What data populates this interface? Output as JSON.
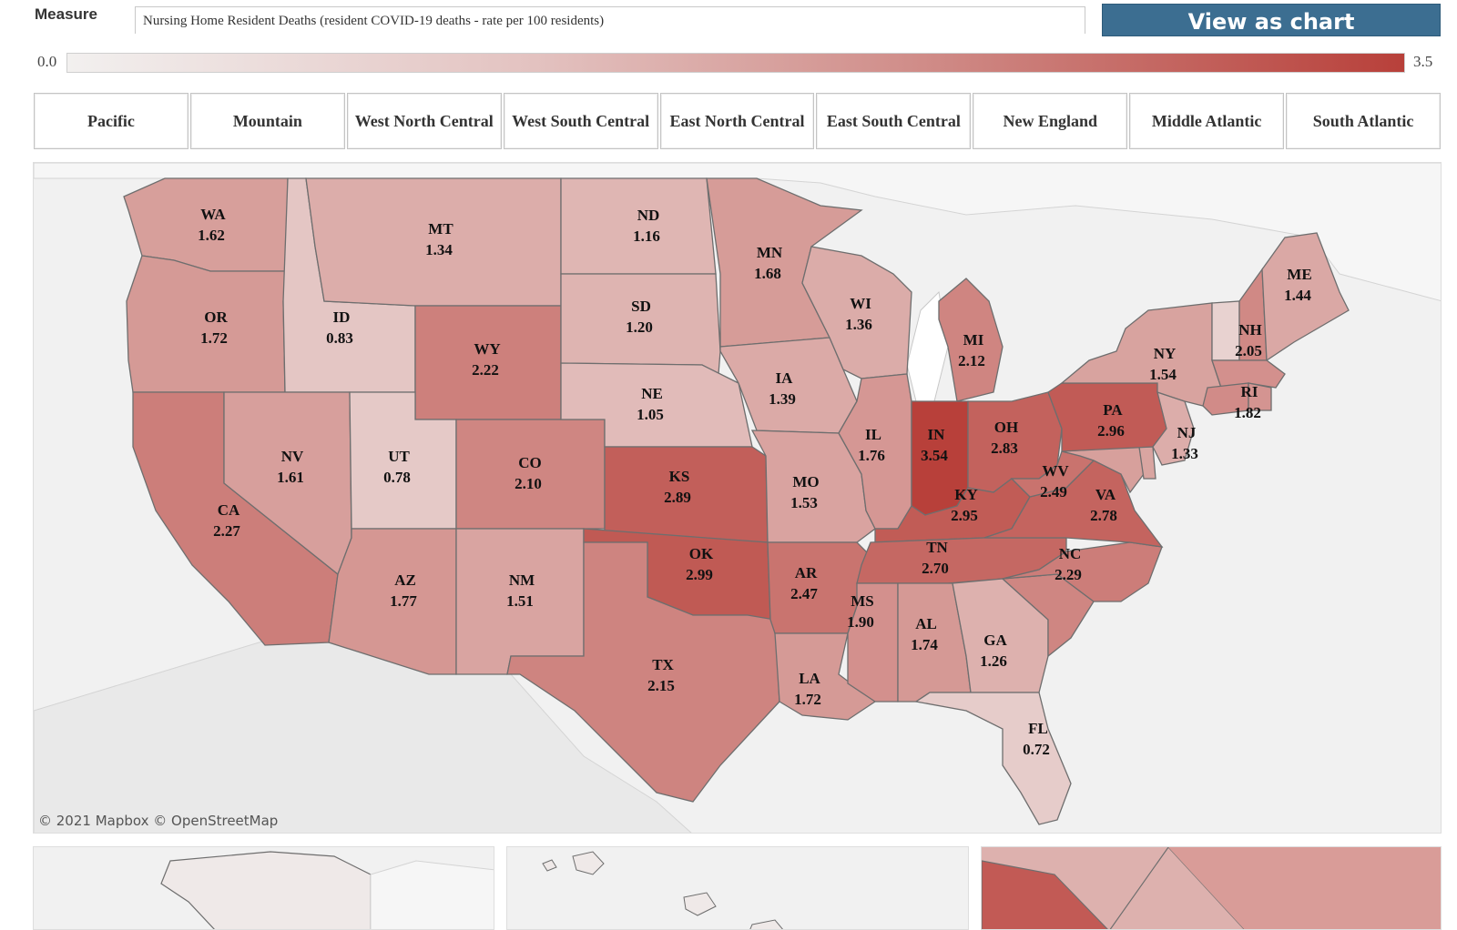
{
  "header": {
    "measure_label": "Measure",
    "measure_value": "Nursing Home Resident Deaths (resident COVID-19 deaths - rate per 100 residents)",
    "view_button": "View as chart"
  },
  "legend": {
    "min_label": "0.0",
    "max_label": "3.5",
    "min": 0.0,
    "max": 3.5,
    "color_low": "#f2f0ef",
    "color_high": "#b8403a"
  },
  "tabs": [
    "Pacific",
    "Mountain",
    "West North Central",
    "West South Central",
    "East North Central",
    "East South Central",
    "New England",
    "Middle Atlantic",
    "South Atlantic"
  ],
  "attribution": "© 2021 Mapbox  © OpenStreetMap",
  "states": [
    {
      "code": "WA",
      "value": "1.62"
    },
    {
      "code": "OR",
      "value": "1.72"
    },
    {
      "code": "CA",
      "value": "2.27"
    },
    {
      "code": "ID",
      "value": "0.83"
    },
    {
      "code": "NV",
      "value": "1.61"
    },
    {
      "code": "MT",
      "value": "1.34"
    },
    {
      "code": "WY",
      "value": "2.22"
    },
    {
      "code": "UT",
      "value": "0.78"
    },
    {
      "code": "CO",
      "value": "2.10"
    },
    {
      "code": "AZ",
      "value": "1.77"
    },
    {
      "code": "NM",
      "value": "1.51"
    },
    {
      "code": "ND",
      "value": "1.16"
    },
    {
      "code": "SD",
      "value": "1.20"
    },
    {
      "code": "NE",
      "value": "1.05"
    },
    {
      "code": "KS",
      "value": "2.89"
    },
    {
      "code": "OK",
      "value": "2.99"
    },
    {
      "code": "TX",
      "value": "2.15"
    },
    {
      "code": "MN",
      "value": "1.68"
    },
    {
      "code": "IA",
      "value": "1.39"
    },
    {
      "code": "MO",
      "value": "1.53"
    },
    {
      "code": "AR",
      "value": "2.47"
    },
    {
      "code": "LA",
      "value": "1.72"
    },
    {
      "code": "WI",
      "value": "1.36"
    },
    {
      "code": "IL",
      "value": "1.76"
    },
    {
      "code": "MI",
      "value": "2.12"
    },
    {
      "code": "IN",
      "value": "3.54"
    },
    {
      "code": "OH",
      "value": "2.83"
    },
    {
      "code": "KY",
      "value": "2.95"
    },
    {
      "code": "TN",
      "value": "2.70"
    },
    {
      "code": "MS",
      "value": "1.90"
    },
    {
      "code": "AL",
      "value": "1.74"
    },
    {
      "code": "GA",
      "value": "1.26"
    },
    {
      "code": "FL",
      "value": "0.72"
    },
    {
      "code": "NC",
      "value": "2.29"
    },
    {
      "code": "VA",
      "value": "2.78"
    },
    {
      "code": "WV",
      "value": "2.49"
    },
    {
      "code": "PA",
      "value": "2.96"
    },
    {
      "code": "NY",
      "value": "1.54"
    },
    {
      "code": "NJ",
      "value": "1.33"
    },
    {
      "code": "RI",
      "value": "1.82"
    },
    {
      "code": "NH",
      "value": "2.05"
    },
    {
      "code": "ME",
      "value": "1.44"
    }
  ],
  "unlabeled_states": [
    {
      "code": "SC",
      "value": 2.1
    },
    {
      "code": "MD",
      "value": 1.6
    },
    {
      "code": "DE",
      "value": 1.5
    },
    {
      "code": "VT",
      "value": 0.6
    },
    {
      "code": "MA",
      "value": 1.9
    },
    {
      "code": "CT",
      "value": 2.0
    }
  ]
}
